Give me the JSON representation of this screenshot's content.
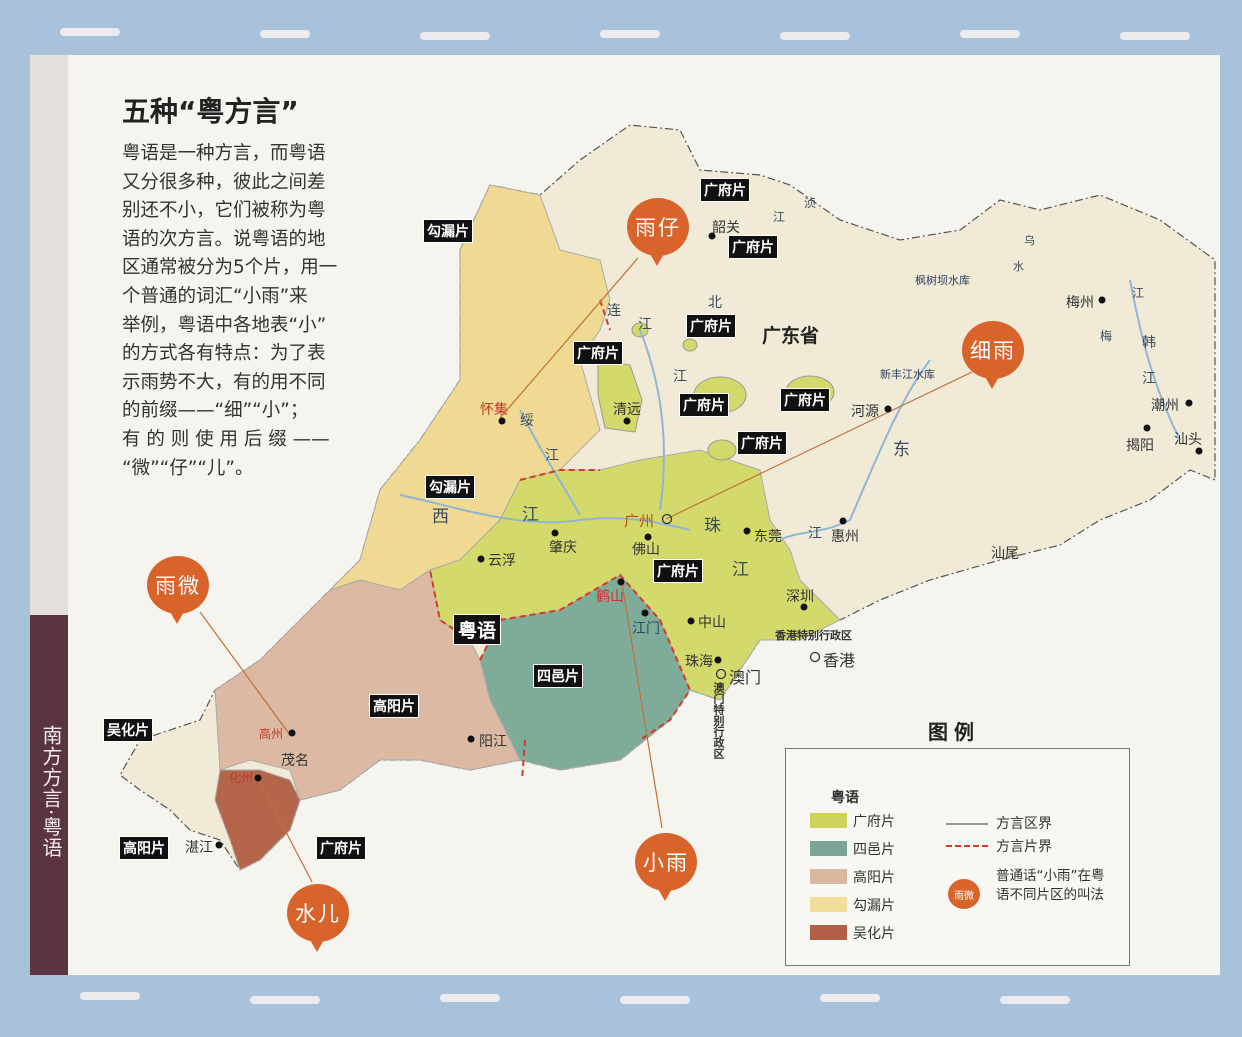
{
  "article": {
    "title": "五种“粤方言”",
    "paragraph_lines": [
      "粤语是一种方言，而粤语",
      "又分很多种，彼此之间差",
      "别还不小，它们被称为粤",
      "语的次方言。说粤语的地",
      "区通常被分为5个片，用一",
      "个普通的词汇“小雨”来",
      "举例，粤语中各地表“小”",
      "的方式各有特点：为了表",
      "示雨势不大，有的用不同",
      "的前缀——“细”“小”；",
      "有 的 则 使 用 后 缀 ——",
      "“微”“仔”“儿”。"
    ]
  },
  "side_strip": {
    "text": "南方方言·粤语"
  },
  "map": {
    "province": "广东省",
    "main_tag": "粤语",
    "tags": [
      "广府片",
      "广府片",
      "勾漏片",
      "广府片",
      "广府片",
      "广府片",
      "广府片",
      "广府片",
      "勾漏片",
      "广府片",
      "四邑片",
      "高阳片",
      "吴化片",
      "高阳片",
      "广府片"
    ],
    "cities": [
      "韶关",
      "清远",
      "怀集",
      "云浮",
      "肇庆",
      "广州",
      "佛山",
      "东莞",
      "惠州",
      "深圳",
      "中山",
      "江门",
      "鹤山",
      "珠海",
      "澳门",
      "香港",
      "阳江",
      "茂名",
      "高州",
      "化州",
      "湛江",
      "河源",
      "梅州",
      "潮州",
      "揭阳",
      "汕头",
      "汕尾"
    ],
    "special_regions": [
      "香港特别行政区",
      "澳门特别行政区"
    ],
    "rivers": [
      "北",
      "江",
      "江",
      "连",
      "绥",
      "江",
      "西",
      "江",
      "珠",
      "江",
      "东",
      "江",
      "江",
      "浈",
      "梅",
      "韩",
      "江",
      "江",
      "乌",
      "水"
    ],
    "reservoirs": [
      "枫树坝水库",
      "新丰江水库"
    ],
    "bubbles": [
      "雨仔",
      "细雨",
      "雨微",
      "水儿",
      "小雨"
    ],
    "colors": {
      "guangfu": "#d3da6b",
      "siyi": "#7eac98",
      "gaoyang": "#dbb9a2",
      "goulou": "#f0d992",
      "wuhua": "#b5654a",
      "base": "#f1ead6",
      "bubble": "#d9642b",
      "boundary_dash": "#d23b2b"
    }
  },
  "legend": {
    "title": "图例",
    "group": "粤语",
    "items": [
      {
        "label": "广府片",
        "color": "#cfd25a"
      },
      {
        "label": "四邑片",
        "color": "#7aa596"
      },
      {
        "label": "高阳片",
        "color": "#dbb7a0"
      },
      {
        "label": "勾漏片",
        "color": "#f0de9a"
      },
      {
        "label": "吴化片",
        "color": "#b35f45"
      }
    ],
    "lines": [
      {
        "label": "方言区界",
        "style": "solid gray"
      },
      {
        "label": "方言片界",
        "style": "dashed red"
      }
    ],
    "bubble_sample": "雨微",
    "bubble_desc": "普通话“小雨”在粤语不同片区的叫法"
  }
}
